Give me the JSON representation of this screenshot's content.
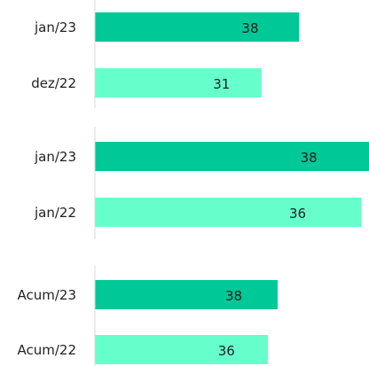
{
  "chart_data": [
    {
      "type": "bar",
      "orientation": "horizontal",
      "categories": [
        "jan/23",
        "dez/22"
      ],
      "values": [
        38,
        31
      ],
      "colors": [
        "#00c896",
        "#66ffcc"
      ],
      "xlim": [
        0,
        51
      ]
    },
    {
      "type": "bar",
      "orientation": "horizontal",
      "categories": [
        "jan/23",
        "jan/22"
      ],
      "values": [
        38,
        36
      ],
      "colors": [
        "#00c896",
        "#66ffcc"
      ],
      "xlim": [
        0,
        37
      ]
    },
    {
      "type": "bar",
      "orientation": "horizontal",
      "categories": [
        "Acum/23",
        "Acum/22"
      ],
      "values": [
        38,
        36
      ],
      "colors": [
        "#00c896",
        "#66ffcc"
      ],
      "xlim": [
        0,
        57
      ]
    }
  ]
}
